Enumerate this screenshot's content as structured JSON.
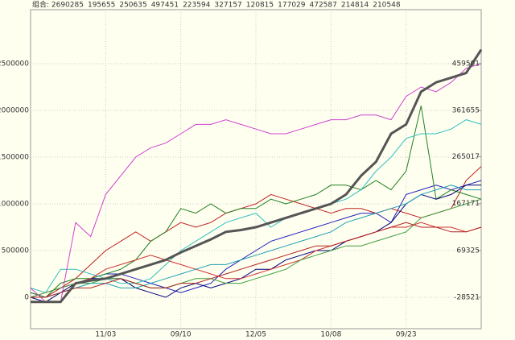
{
  "chart_data": {
    "type": "line",
    "categories": [
      null,
      null,
      null,
      null,
      null,
      "11/03",
      null,
      null,
      null,
      null,
      "09/10",
      null,
      null,
      null,
      null,
      "12/05",
      null,
      null,
      null,
      null,
      "10/08",
      null,
      null,
      null,
      null,
      "09/23",
      null,
      null,
      null,
      null,
      null
    ],
    "series": [
      {
        "name": "组合: 2690285",
        "color": "#555555",
        "width": 3,
        "values": [
          -50000,
          -50000,
          -50000,
          150000,
          180000,
          200000,
          250000,
          300000,
          350000,
          400000,
          480000,
          550000,
          620000,
          700000,
          720000,
          750000,
          800000,
          850000,
          900000,
          950000,
          1000000,
          1100000,
          1300000,
          1450000,
          1750000,
          1850000,
          2200000,
          2300000,
          2350000,
          2400000,
          2650000
        ]
      },
      {
        "name": "195655",
        "color": "#2020c0",
        "width": 1,
        "values": [
          50000,
          0,
          100000,
          150000,
          200000,
          250000,
          250000,
          200000,
          150000,
          100000,
          50000,
          100000,
          150000,
          300000,
          400000,
          500000,
          600000,
          650000,
          700000,
          750000,
          800000,
          850000,
          900000,
          900000,
          800000,
          1100000,
          1150000,
          1200000,
          1150000,
          1200000,
          1250000
        ]
      },
      {
        "name": "250635",
        "color": "#c02020",
        "width": 1,
        "values": [
          0,
          50000,
          100000,
          200000,
          350000,
          500000,
          600000,
          700000,
          600000,
          700000,
          800000,
          750000,
          800000,
          900000,
          950000,
          1000000,
          1100000,
          1050000,
          1000000,
          950000,
          900000,
          950000,
          950000,
          900000,
          950000,
          900000,
          850000,
          900000,
          950000,
          1250000,
          1400000
        ]
      },
      {
        "name": "497451",
        "color": "#208020",
        "width": 1,
        "values": [
          50000,
          0,
          150000,
          200000,
          200000,
          250000,
          300000,
          400000,
          600000,
          700000,
          950000,
          900000,
          1000000,
          900000,
          950000,
          950000,
          1050000,
          1000000,
          1050000,
          1100000,
          1200000,
          1200000,
          1150000,
          1250000,
          1150000,
          1350000,
          2050000,
          1050000,
          1150000,
          1100000,
          1050000
        ]
      },
      {
        "name": "223594",
        "color": "#000080",
        "width": 1,
        "values": [
          0,
          -50000,
          50000,
          150000,
          200000,
          200000,
          200000,
          100000,
          50000,
          0,
          100000,
          150000,
          100000,
          150000,
          200000,
          300000,
          300000,
          400000,
          450000,
          500000,
          500000,
          600000,
          650000,
          700000,
          800000,
          1000000,
          1100000,
          1050000,
          1100000,
          1200000,
          1200000
        ]
      },
      {
        "name": "327157",
        "color": "#30c0c0",
        "width": 1,
        "values": [
          100000,
          50000,
          300000,
          300000,
          250000,
          200000,
          150000,
          150000,
          200000,
          350000,
          500000,
          600000,
          700000,
          800000,
          850000,
          900000,
          750000,
          850000,
          900000,
          950000,
          1000000,
          1050000,
          1150000,
          1350000,
          1500000,
          1700000,
          1750000,
          1750000,
          1800000,
          1900000,
          1850000
        ]
      },
      {
        "name": "120815",
        "color": "#d03030",
        "width": 1,
        "values": [
          0,
          0,
          100000,
          150000,
          200000,
          300000,
          350000,
          400000,
          450000,
          400000,
          350000,
          300000,
          250000,
          200000,
          200000,
          250000,
          300000,
          350000,
          400000,
          500000,
          550000,
          600000,
          650000,
          700000,
          750000,
          750000,
          800000,
          750000,
          750000,
          700000,
          750000
        ]
      },
      {
        "name": "177029",
        "color": "#40a040",
        "width": 1,
        "values": [
          0,
          50000,
          100000,
          150000,
          150000,
          200000,
          200000,
          150000,
          100000,
          100000,
          150000,
          200000,
          200000,
          150000,
          150000,
          200000,
          250000,
          300000,
          400000,
          450000,
          500000,
          550000,
          550000,
          600000,
          650000,
          700000,
          850000,
          900000,
          950000,
          1000000,
          1050000
        ]
      },
      {
        "name": "472587",
        "color": "#d040d0",
        "width": 1,
        "values": [
          100000,
          -50000,
          -50000,
          800000,
          650000,
          1100000,
          1300000,
          1500000,
          1600000,
          1650000,
          1750000,
          1850000,
          1850000,
          1900000,
          1850000,
          1800000,
          1750000,
          1750000,
          1800000,
          1850000,
          1900000,
          1900000,
          1950000,
          1950000,
          1900000,
          2150000,
          2250000,
          2200000,
          2300000,
          2450000,
          2500000
        ]
      },
      {
        "name": "214814",
        "color": "#20a0b0",
        "width": 1,
        "values": [
          0,
          0,
          50000,
          100000,
          150000,
          150000,
          100000,
          100000,
          150000,
          200000,
          250000,
          300000,
          350000,
          350000,
          400000,
          450000,
          500000,
          550000,
          600000,
          650000,
          700000,
          800000,
          850000,
          900000,
          950000,
          1000000,
          1100000,
          1150000,
          1200000,
          1150000,
          1150000
        ]
      },
      {
        "name": "210548",
        "color": "#b02020",
        "width": 1,
        "values": [
          0,
          0,
          50000,
          100000,
          100000,
          150000,
          200000,
          150000,
          100000,
          100000,
          150000,
          150000,
          200000,
          250000,
          300000,
          350000,
          400000,
          450000,
          500000,
          550000,
          550000,
          600000,
          650000,
          700000,
          750000,
          800000,
          750000,
          750000,
          700000,
          700000,
          750000
        ]
      }
    ],
    "ylim": [
      -336000,
      3078000
    ],
    "yticks": [
      0,
      500000,
      1000000,
      1500000,
      2000000,
      2500000
    ],
    "y2lim": [
      -94111,
      572332
    ],
    "y2ticks": [
      -28521,
      69325,
      167171,
      265017,
      361655,
      459501
    ],
    "grid": true
  }
}
